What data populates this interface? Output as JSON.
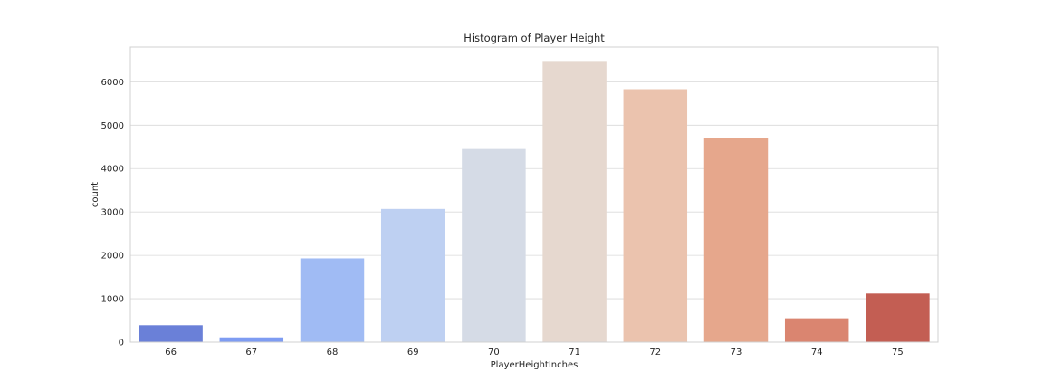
{
  "chart_data": {
    "type": "bar",
    "title": "Histogram of Player Height",
    "xlabel": "PlayerHeightInches",
    "ylabel": "count",
    "categories": [
      "66",
      "67",
      "68",
      "69",
      "70",
      "71",
      "72",
      "73",
      "74",
      "75"
    ],
    "values": [
      390,
      110,
      1930,
      3070,
      4450,
      6480,
      5830,
      4700,
      550,
      1120
    ],
    "colors": [
      "#6a80d8",
      "#7e9cf2",
      "#a0bbf4",
      "#bed0f2",
      "#d5dbe6",
      "#e6d8cf",
      "#ebc3ae",
      "#e6a78c",
      "#da8570",
      "#c35e53"
    ],
    "ylim": [
      0,
      6800
    ],
    "yticks": [
      0,
      1000,
      2000,
      3000,
      4000,
      5000,
      6000
    ],
    "grid": true
  }
}
